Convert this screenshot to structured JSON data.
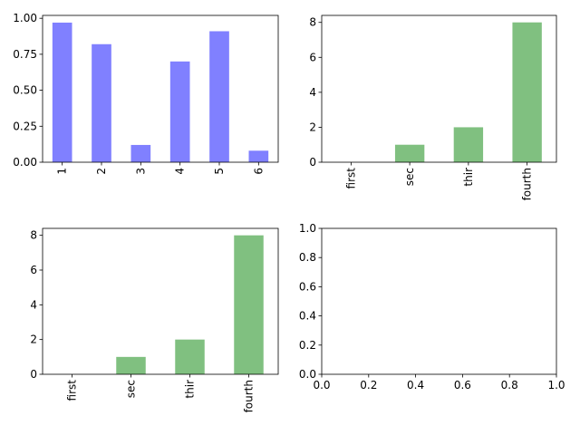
{
  "chart_data": [
    {
      "type": "bar",
      "categories": [
        "1",
        "2",
        "3",
        "4",
        "5",
        "6"
      ],
      "values": [
        0.97,
        0.82,
        0.12,
        0.7,
        0.91,
        0.08
      ],
      "color": "#8080ff",
      "ylim": [
        0,
        1.02
      ],
      "yticks": [
        0.0,
        0.25,
        0.5,
        0.75,
        1.0
      ],
      "ytick_labels": [
        "0.00",
        "0.25",
        "0.50",
        "0.75",
        "1.00"
      ],
      "xtick_rotation": "vertical",
      "grid": false
    },
    {
      "type": "bar",
      "categories": [
        "first",
        "sec",
        "thir",
        "fourth"
      ],
      "values": [
        0,
        1,
        2,
        8
      ],
      "color": "#80c080",
      "ylim": [
        0,
        8.4
      ],
      "yticks": [
        0,
        2,
        4,
        6,
        8
      ],
      "ytick_labels": [
        "0",
        "2",
        "4",
        "6",
        "8"
      ],
      "xtick_rotation": "vertical",
      "grid": false
    },
    {
      "type": "bar",
      "categories": [
        "first",
        "sec",
        "thir",
        "fourth"
      ],
      "values": [
        0,
        1,
        2,
        8
      ],
      "color": "#80c080",
      "ylim": [
        0,
        8.4
      ],
      "yticks": [
        0,
        2,
        4,
        6,
        8
      ],
      "ytick_labels": [
        "0",
        "2",
        "4",
        "6",
        "8"
      ],
      "xtick_rotation": "vertical",
      "grid": false
    },
    {
      "type": "empty",
      "xlim": [
        0,
        1
      ],
      "ylim": [
        0,
        1
      ],
      "xticks": [
        0,
        0.2,
        0.4,
        0.6,
        0.8,
        1.0
      ],
      "xtick_labels": [
        "0.0",
        "0.2",
        "0.4",
        "0.6",
        "0.8",
        "1.0"
      ],
      "yticks": [
        0,
        0.2,
        0.4,
        0.6,
        0.8,
        1.0
      ],
      "ytick_labels": [
        "0.0",
        "0.2",
        "0.4",
        "0.6",
        "0.8",
        "1.0"
      ],
      "grid": false
    }
  ]
}
